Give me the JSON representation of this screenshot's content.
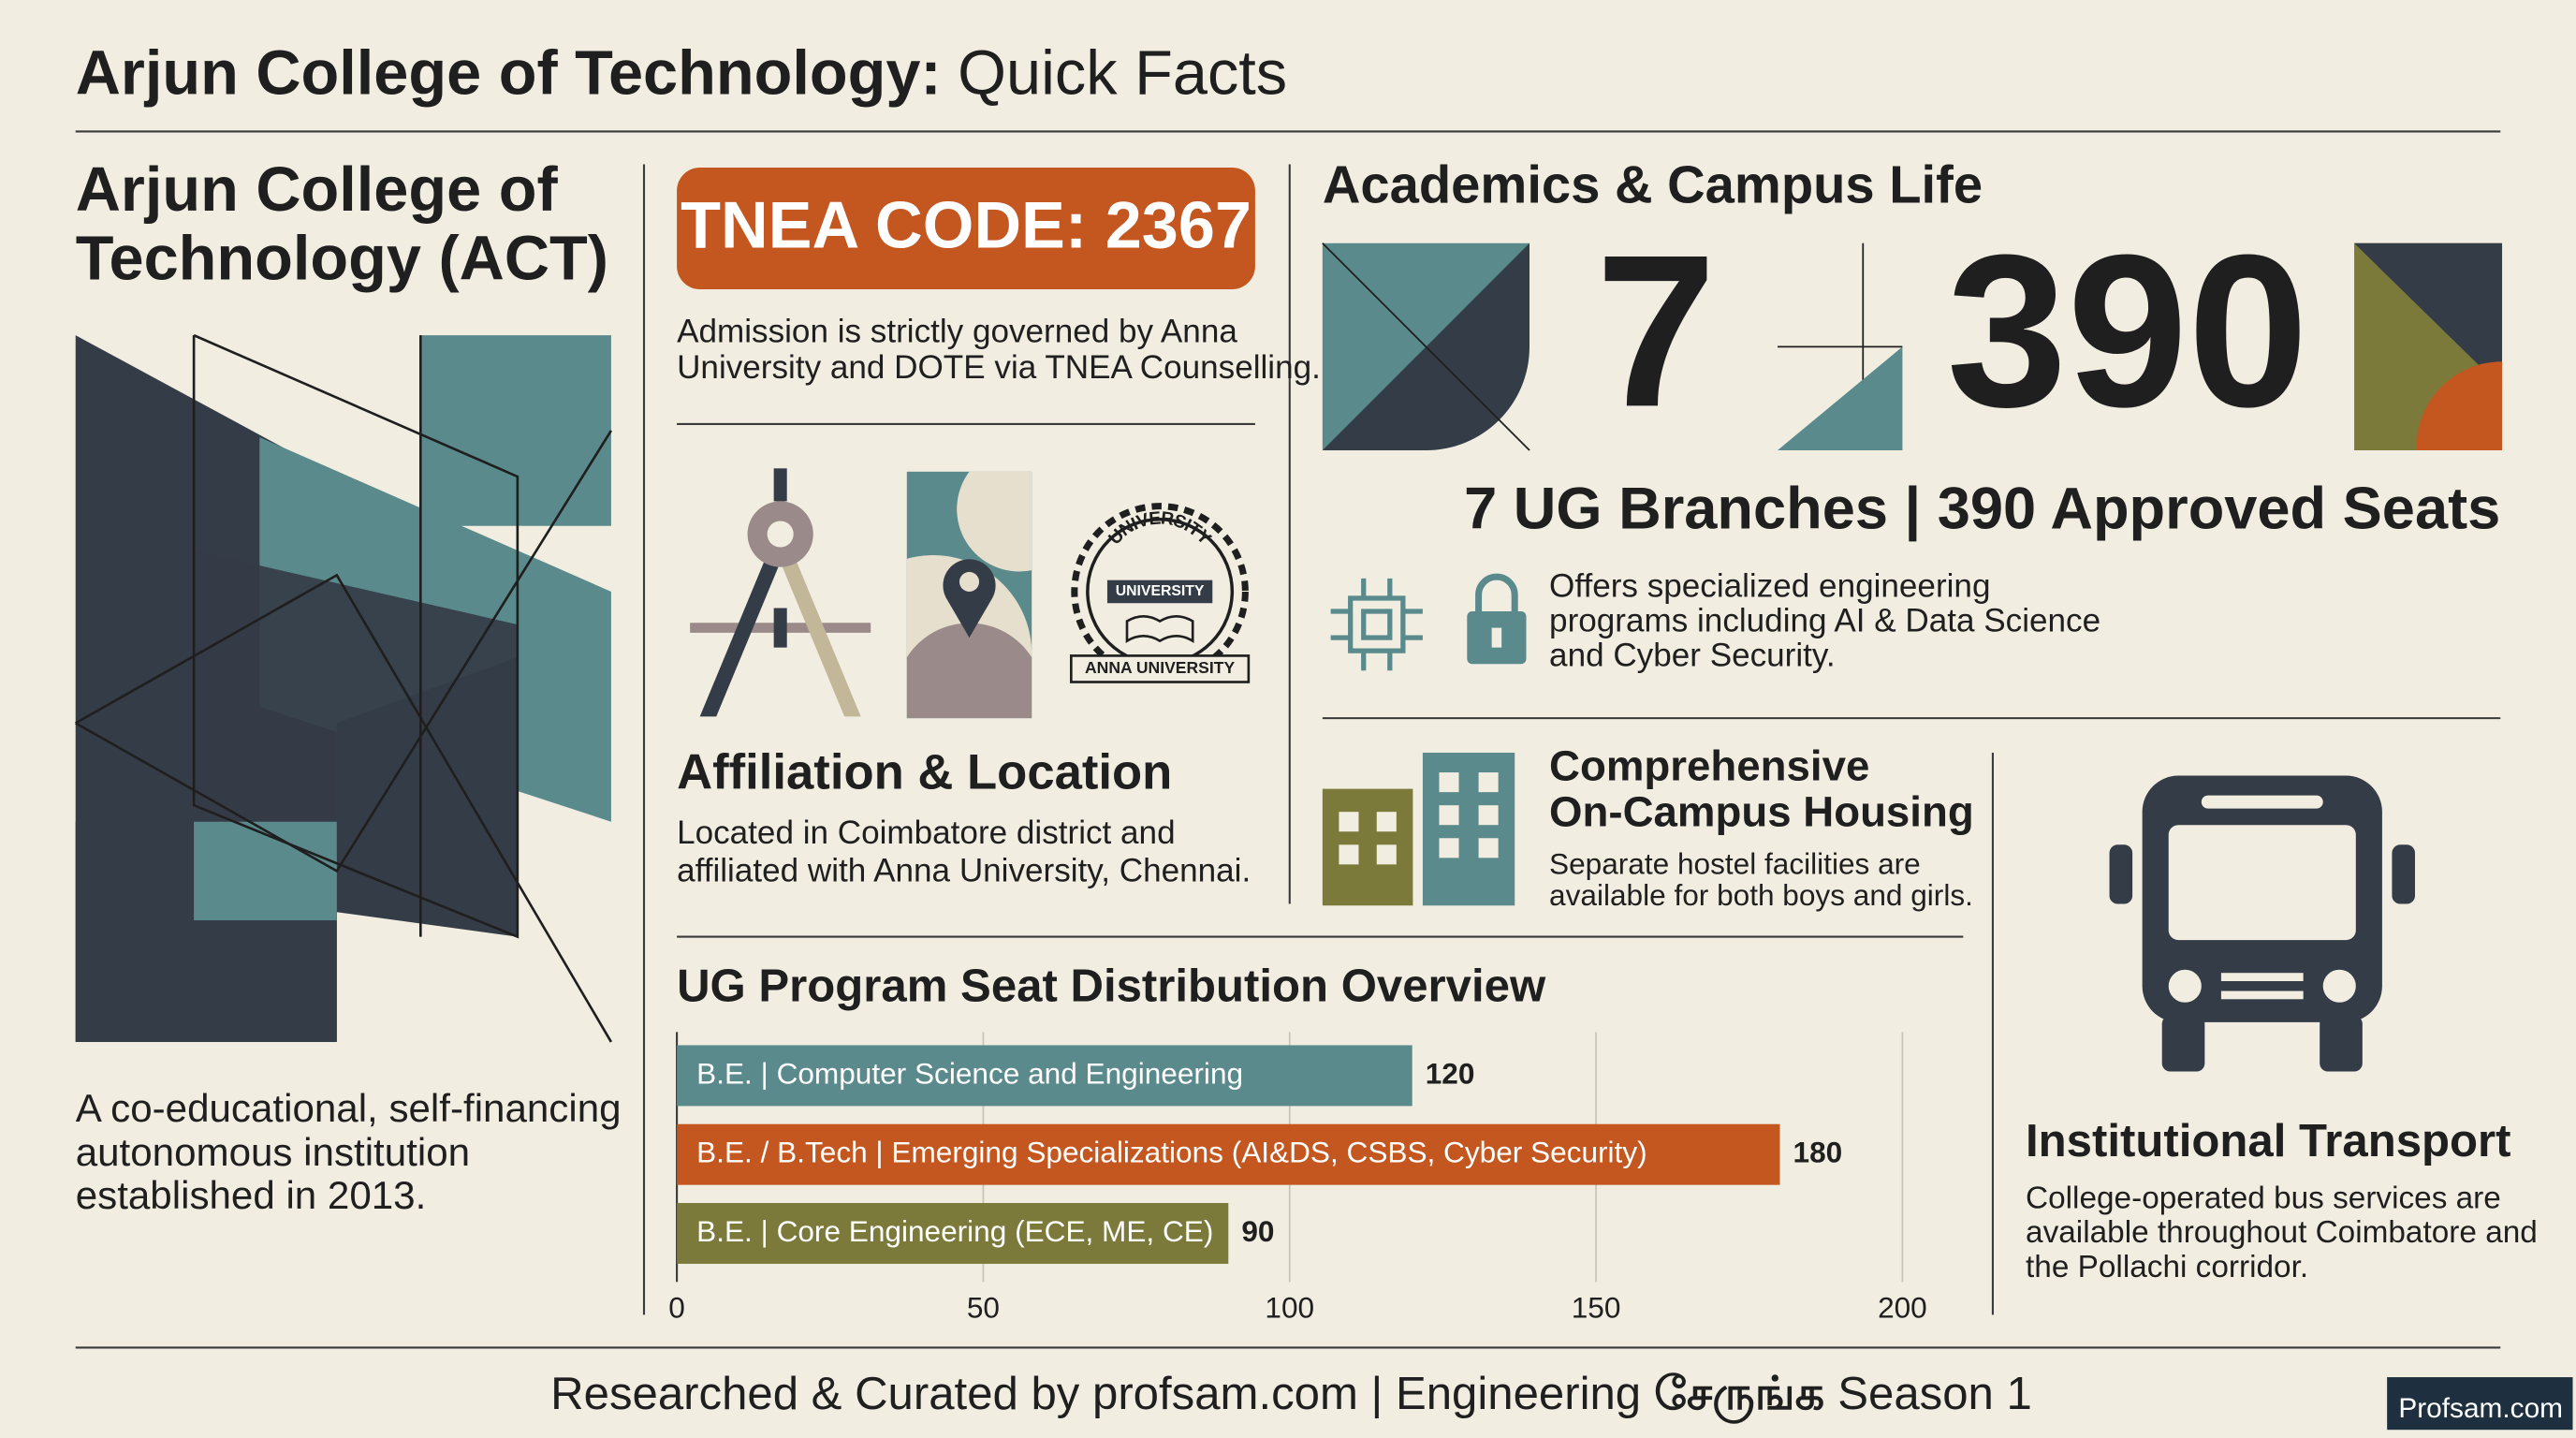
{
  "header": {
    "title_bold": "Arjun College of Technology:",
    "title_rest": "Quick Facts"
  },
  "intro": {
    "name": [
      "Arjun College of",
      "Technology (ACT)"
    ],
    "description": [
      "A co-educational, self-financing",
      "autonomous institution",
      "established in 2013."
    ]
  },
  "admission": {
    "code": "TNEA CODE: 2367",
    "note": [
      "Admission is strictly governed by Anna",
      "University and DOTE via TNEA Counselling."
    ]
  },
  "affiliation": {
    "badge_arc": "UNIVERSITY",
    "badge_center": "UNIVERSITY",
    "badge_bottom": "ANNA UNIVERSITY",
    "title": "Affiliation & Location",
    "text": [
      "Located in Coimbatore district and",
      "affiliated with Anna University, Chennai."
    ]
  },
  "academics": {
    "title": "Academics & Campus Life",
    "branches": "7",
    "seats": "390",
    "summary": "7 UG Branches | 390 Approved Seats",
    "programs": [
      "Offers specialized engineering",
      "programs including AI & Data Science",
      "and Cyber Security."
    ]
  },
  "housing": {
    "title": [
      "Comprehensive",
      "On-Campus Housing"
    ],
    "text": [
      "Separate hostel facilities are",
      "available for both boys and girls."
    ]
  },
  "transport": {
    "title": "Institutional Transport",
    "text": [
      "College-operated bus services are",
      "available throughout Coimbatore and",
      "the Pollachi corridor."
    ]
  },
  "chart_data": {
    "type": "bar",
    "orientation": "horizontal",
    "title": "UG Program Seat Distribution Overview",
    "categories": [
      "B.E. | Computer Science and Engineering",
      "B.E. / B.Tech | Emerging Specializations (AI&DS, CSBS, Cyber Security)",
      "B.E. | Core Engineering (ECE, ME, CE)"
    ],
    "values": [
      120,
      180,
      90
    ],
    "colors": [
      "#5a8a8c",
      "#c4561f",
      "#7b7a3a"
    ],
    "xlim": [
      0,
      200
    ],
    "xticks": [
      0,
      50,
      100,
      150,
      200
    ],
    "grid": true
  },
  "footer": {
    "credit_a": "Researched & Curated by profsam.com | Engineering",
    "credit_tamil": "சேருங்க",
    "credit_b": "Season 1",
    "brand": "Profsam.com"
  }
}
